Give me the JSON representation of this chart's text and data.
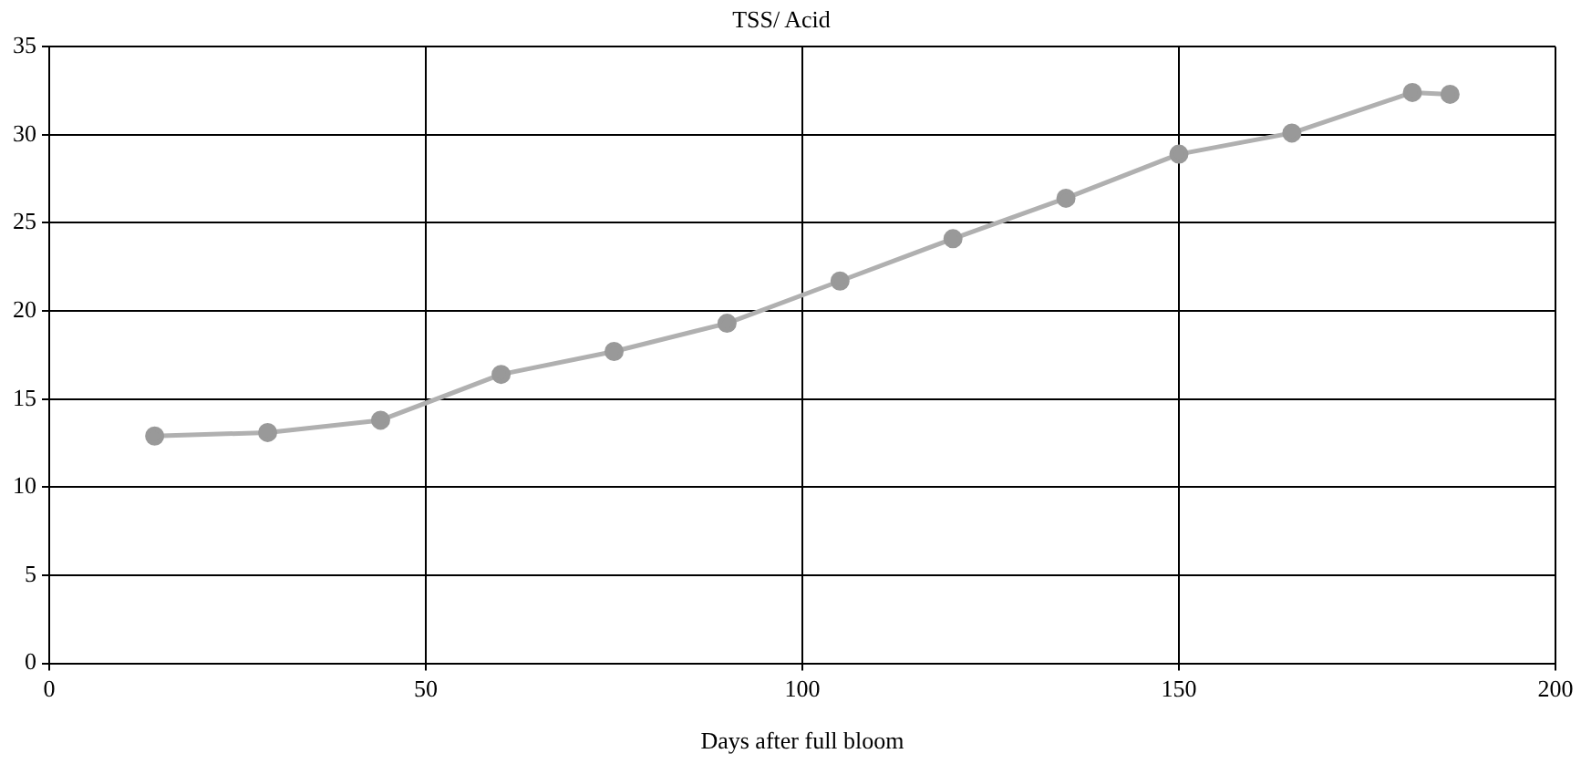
{
  "chart_data": {
    "type": "line",
    "title": "TSS/ Acid",
    "xlabel": "Days after full bloom",
    "x": [
      14,
      29,
      44,
      60,
      75,
      90,
      105,
      120,
      135,
      150,
      165,
      181,
      186
    ],
    "series": [
      {
        "color": "#b0b0b0",
        "values": [
          12.9,
          13.1,
          13.8,
          16.4,
          17.7,
          19.3,
          21.7,
          24.1,
          26.4,
          28.9,
          30.1,
          32.4,
          32.3
        ]
      }
    ],
    "xlim": [
      0,
      200
    ],
    "xticks": [
      0,
      50,
      100,
      150,
      200
    ],
    "ylim": [
      0,
      35
    ],
    "yticks": [
      0,
      5,
      10,
      15,
      20,
      25,
      30,
      35
    ],
    "grid": true,
    "legend": false,
    "marker": "circle",
    "line_style": "solid"
  }
}
